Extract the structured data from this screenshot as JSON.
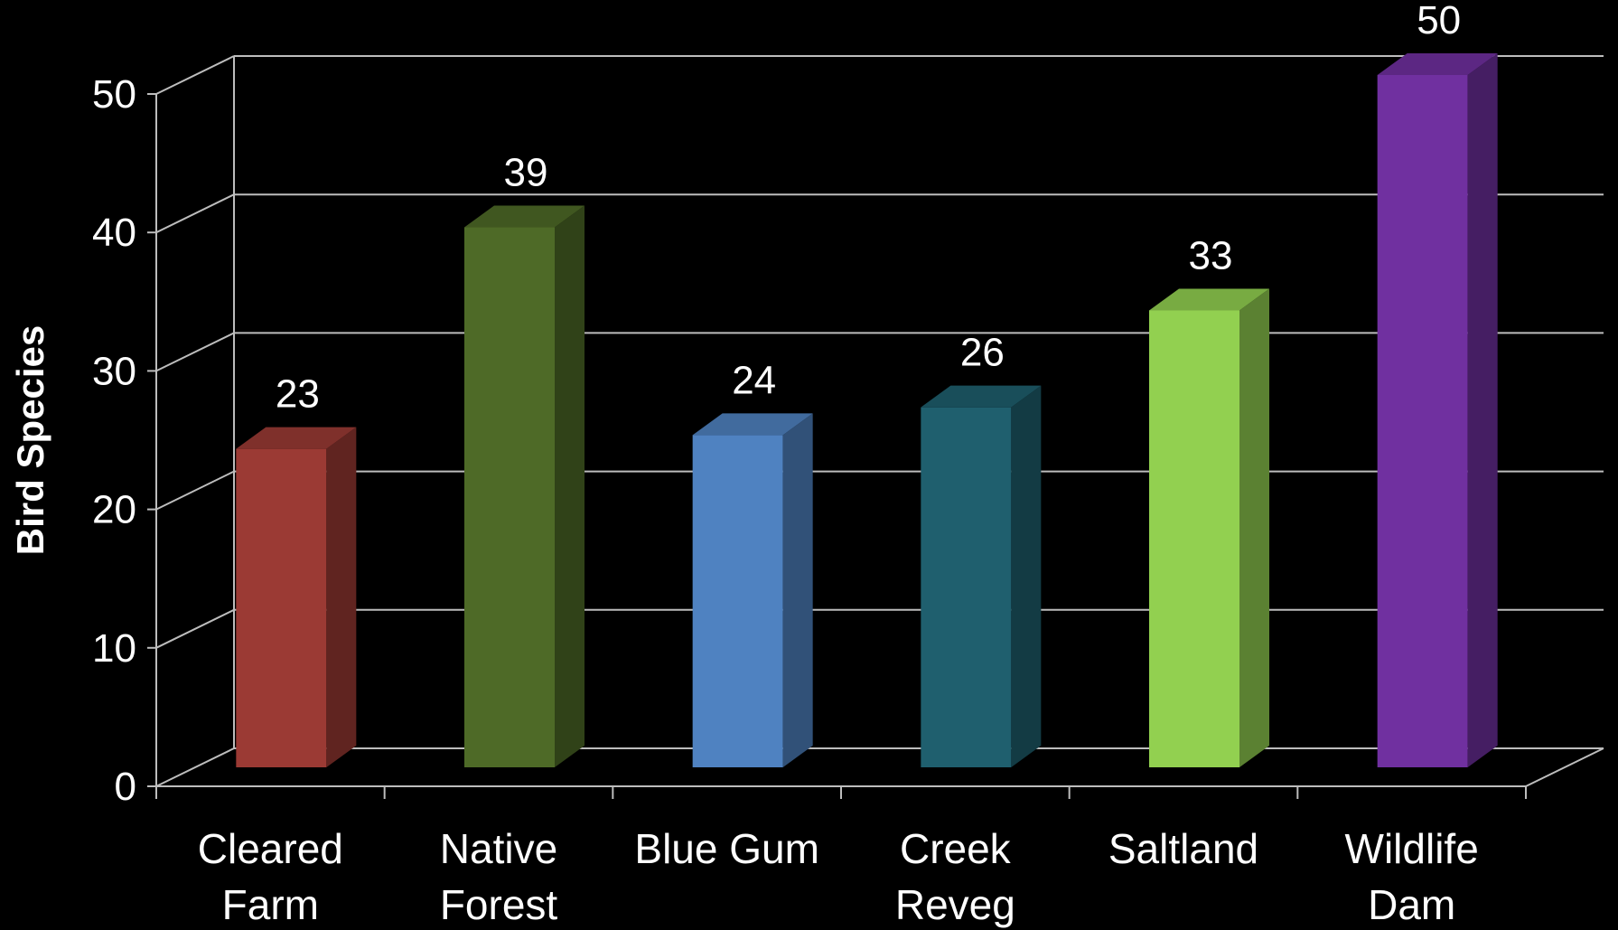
{
  "chart_data": {
    "type": "bar",
    "title": "",
    "xlabel": "",
    "ylabel": "Bird Species",
    "ylim": [
      0,
      50
    ],
    "yticks": [
      0,
      10,
      20,
      30,
      40,
      50
    ],
    "grid": true,
    "legend": "none",
    "categories": [
      [
        "Cleared",
        "Farm"
      ],
      [
        "Native",
        "Forest"
      ],
      [
        "Blue Gum"
      ],
      [
        "Creek",
        "Reveg"
      ],
      [
        "Saltland"
      ],
      [
        "Wildlife",
        "Dam"
      ]
    ],
    "values": [
      23,
      39,
      24,
      26,
      33,
      50
    ],
    "colors": [
      "#9b3a34",
      "#4e6a27",
      "#4f82c1",
      "#1f5f6e",
      "#92d050",
      "#7030a0"
    ]
  }
}
